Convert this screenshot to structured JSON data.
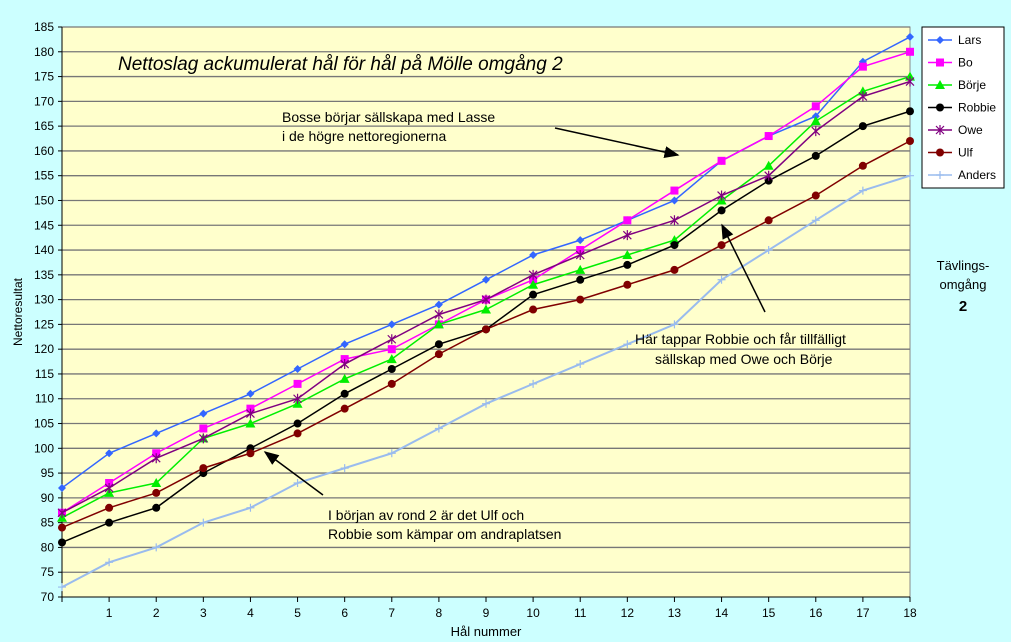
{
  "chart_data": {
    "type": "line",
    "title": "Nettoslag ackumulerat hål för hål på Mölle omgång 2",
    "xlabel": "Hål nummer",
    "ylabel": "Nettoresultat",
    "ylim": [
      70,
      185
    ],
    "ystep": 5,
    "x": [
      0,
      1,
      2,
      3,
      4,
      5,
      6,
      7,
      8,
      9,
      10,
      11,
      12,
      13,
      14,
      15,
      16,
      17,
      18
    ],
    "xticklabels": [
      "",
      "1",
      "2",
      "3",
      "4",
      "5",
      "6",
      "7",
      "8",
      "9",
      "10",
      "11",
      "12",
      "13",
      "14",
      "15",
      "16",
      "17",
      "18"
    ],
    "grid": true,
    "legend_position": "right",
    "series": [
      {
        "name": "Lars",
        "color": "#3366ff",
        "marker": "diamond",
        "values": [
          92,
          99,
          103,
          107,
          111,
          116,
          121,
          125,
          129,
          134,
          139,
          142,
          146,
          150,
          158,
          163,
          167,
          178,
          183
        ]
      },
      {
        "name": "Bo",
        "color": "#ff00ff",
        "marker": "square",
        "values": [
          87,
          93,
          99,
          104,
          108,
          113,
          118,
          120,
          125,
          130,
          134,
          140,
          146,
          152,
          158,
          163,
          169,
          177,
          180
        ]
      },
      {
        "name": "Börje",
        "color": "#00ee00",
        "marker": "triangle",
        "values": [
          86,
          91,
          93,
          102,
          105,
          109,
          114,
          118,
          125,
          128,
          133,
          136,
          139,
          142,
          150,
          157,
          166,
          172,
          175
        ]
      },
      {
        "name": "Robbie",
        "color": "#000000",
        "marker": "circle",
        "values": [
          81,
          85,
          88,
          95,
          100,
          105,
          111,
          116,
          121,
          124,
          131,
          134,
          137,
          141,
          148,
          154,
          159,
          165,
          168
        ]
      },
      {
        "name": "Owe",
        "color": "#800080",
        "marker": "star",
        "values": [
          87,
          92,
          98,
          102,
          107,
          110,
          117,
          122,
          127,
          130,
          135,
          139,
          143,
          146,
          151,
          155,
          164,
          171,
          174
        ]
      },
      {
        "name": "Ulf",
        "color": "#800000",
        "marker": "circle",
        "values": [
          84,
          88,
          91,
          96,
          99,
          103,
          108,
          113,
          119,
          124,
          128,
          130,
          133,
          136,
          141,
          146,
          151,
          157,
          162
        ]
      },
      {
        "name": "Anders",
        "color": "#99bbee",
        "marker": "plus",
        "values": [
          72,
          77,
          80,
          85,
          88,
          93,
          96,
          99,
          104,
          109,
          113,
          117,
          121,
          125,
          134,
          140,
          146,
          152,
          155
        ]
      }
    ],
    "annotations": [
      {
        "lines": [
          "Bosse börjar sällskapa med Lasse",
          "i de högre nettoregionerna"
        ]
      },
      {
        "lines": [
          "Här tappar Robbie och får tillfälligt",
          "sällskap med Owe och Börje"
        ]
      },
      {
        "lines": [
          "I början av rond 2 är det Ulf och",
          "Robbie som kämpar om andraplatsen"
        ]
      }
    ],
    "side_label": {
      "line1": "Tävlings-",
      "line2": "omgång",
      "value": "2"
    }
  }
}
